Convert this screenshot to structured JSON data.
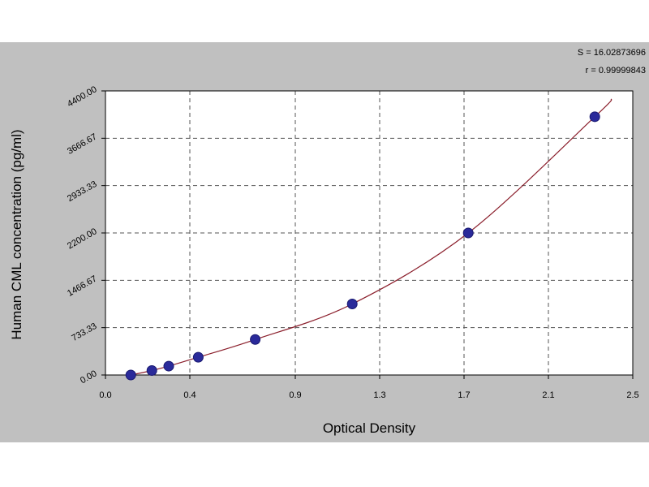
{
  "chart_data": {
    "type": "scatter",
    "xlabel": "Optical Density",
    "ylabel": "Human CML concentration (pg/ml)",
    "xlim": [
      0,
      2.5
    ],
    "ylim": [
      0,
      4400
    ],
    "x_ticks": [
      "0.0",
      "0.4",
      "0.9",
      "1.3",
      "1.7",
      "2.1",
      "2.5"
    ],
    "x_tick_values": [
      0,
      0.4,
      0.9,
      1.3,
      1.7,
      2.1,
      2.5
    ],
    "y_ticks": [
      "0.00",
      "733.33",
      "1466.67",
      "2200.00",
      "2933.33",
      "3666.67",
      "4400.00"
    ],
    "y_tick_values": [
      0,
      733.33,
      1466.67,
      2200,
      2933.33,
      3666.67,
      4400
    ],
    "grid": true,
    "points": [
      {
        "x": 0.12,
        "y": 0
      },
      {
        "x": 0.22,
        "y": 68.75
      },
      {
        "x": 0.3,
        "y": 137.5
      },
      {
        "x": 0.44,
        "y": 275
      },
      {
        "x": 0.71,
        "y": 550
      },
      {
        "x": 1.17,
        "y": 1100
      },
      {
        "x": 1.72,
        "y": 2200
      },
      {
        "x": 2.32,
        "y": 4000
      }
    ],
    "curve": {
      "x_start": 0.12,
      "x_end": 2.4
    },
    "stats": [
      "S = 16.02873696",
      "r = 0.99999843"
    ],
    "colors": {
      "background": "#c0c0c0",
      "plot_area": "#ffffff",
      "curve": "#8b1f2c",
      "point": "#2a2a9a",
      "grid": "#555555"
    }
  }
}
